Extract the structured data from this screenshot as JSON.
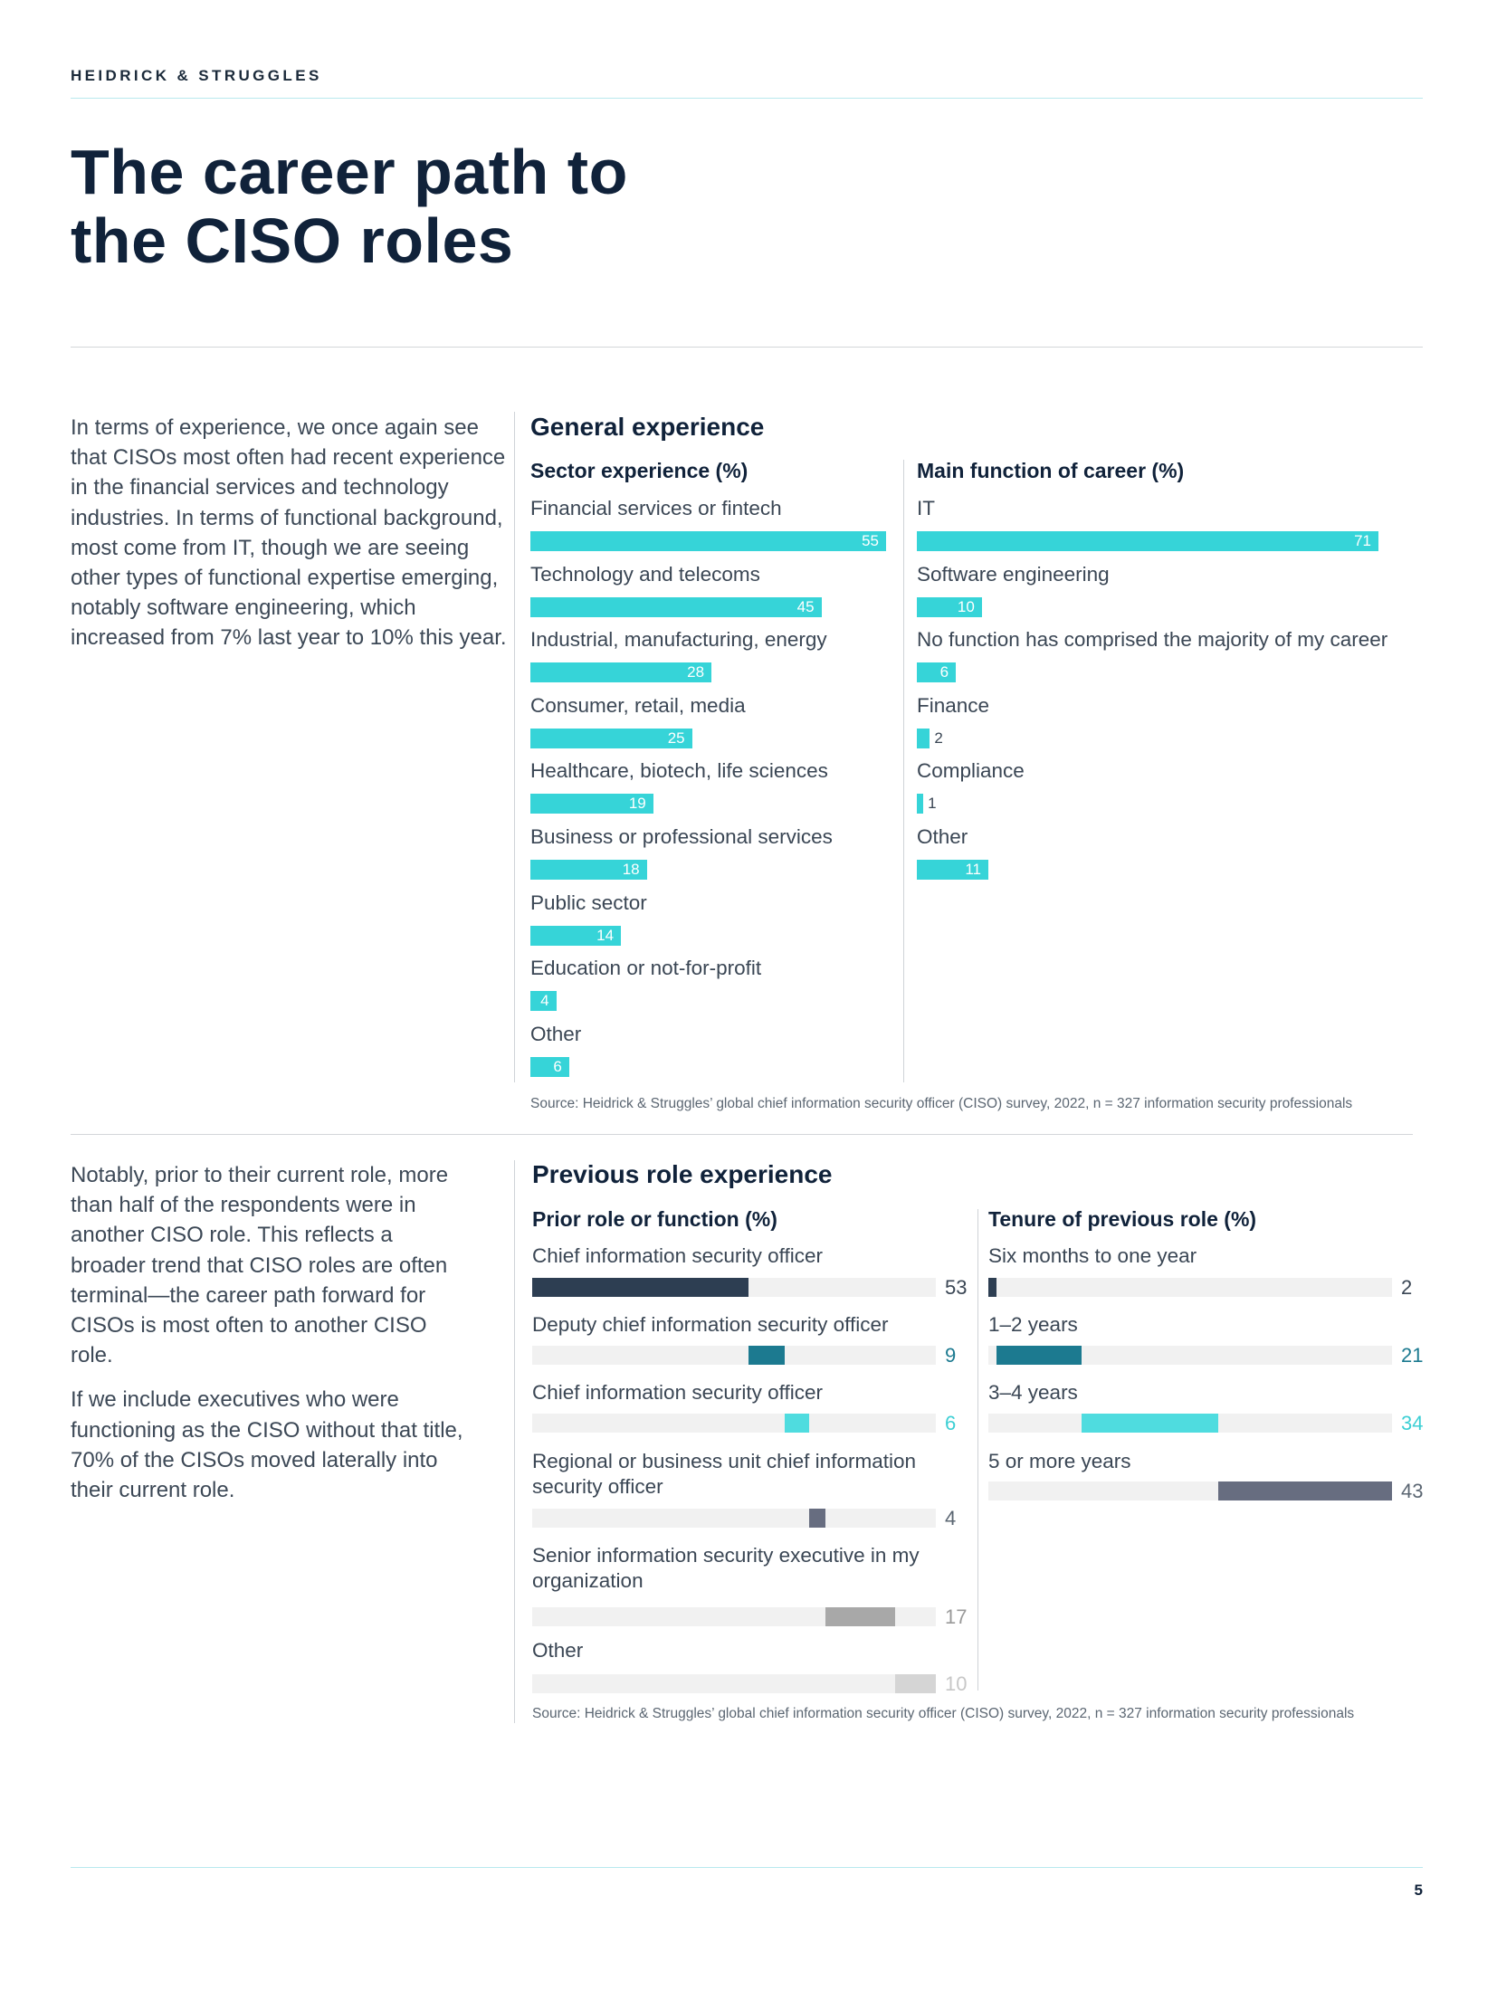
{
  "header": {
    "brand": "HEIDRICK & STRUGGLES"
  },
  "title": {
    "line1": "The career path to",
    "line2": "the CISO roles"
  },
  "intro": {
    "p1": "In terms of experience, we once again see that CISOs most often had recent experience in the financial services and technology industries. In terms of functional background, most come from IT, though we are seeing other types of functional expertise emerging, notably software engineering, which increased from 7% last year to 10% this year."
  },
  "second": {
    "p1": "Notably, prior to their current role, more than half of the respondents were in another CISO role. This reflects a broader trend that CISO roles are often terminal—the career path forward for CISOs is most often to another CISO role.",
    "p2": "If we include executives who were functioning as the CISO without that title, 70% of the CISOs moved laterally into their current role."
  },
  "footer": {
    "page_number": "5"
  },
  "colors": {
    "cyan": "#36d4d8",
    "navy": "#2d3e52",
    "teal": "#1c7a90",
    "light_cyan": "#4fdcdf",
    "slate": "#676d80",
    "grey": "#a8a8a8",
    "light_grey": "#d5d5d5",
    "track": "#f1f1f1"
  },
  "chart_data": [
    {
      "type": "bar",
      "orientation": "horizontal",
      "panel": "General experience",
      "title": "Sector experience (%)",
      "categories": [
        "Financial services or fintech",
        "Technology and telecoms",
        "Industrial, manufacturing, energy",
        "Consumer, retail, media",
        "Healthcare, biotech, life sciences",
        "Business or professional services",
        "Public sector",
        "Education or not-for-profit",
        "Other"
      ],
      "values": [
        55,
        45,
        28,
        25,
        19,
        18,
        14,
        4,
        6
      ],
      "xlim": [
        0,
        55
      ],
      "source": "Source: Heidrick & Struggles’ global chief information security officer (CISO) survey, 2022, n = 327 information security professionals"
    },
    {
      "type": "bar",
      "orientation": "horizontal",
      "panel": "General experience",
      "title": "Main function of career (%)",
      "categories": [
        "IT",
        "Software engineering",
        "No function has comprised the majority of my career",
        "Finance",
        "Compliance",
        "Other"
      ],
      "values": [
        71,
        10,
        6,
        2,
        1,
        11
      ],
      "xlim": [
        0,
        71
      ]
    },
    {
      "type": "bar",
      "orientation": "horizontal",
      "style": "stacked-offset",
      "panel": "Previous role experience",
      "title": "Prior role or function (%)",
      "categories": [
        "Chief information security officer",
        "Deputy chief information security officer",
        "Chief information security officer",
        "Regional or business unit chief information security officer",
        "Senior information security executive in my organization",
        "Other"
      ],
      "values": [
        53,
        9,
        6,
        4,
        17,
        10
      ],
      "xlim": [
        0,
        99
      ],
      "colors": [
        "#2d3e52",
        "#1c7a90",
        "#4fdcdf",
        "#676d80",
        "#a8a8a8",
        "#d5d5d5"
      ],
      "source": "Source: Heidrick & Struggles’ global chief information security officer (CISO) survey, 2022, n = 327 information security professionals"
    },
    {
      "type": "bar",
      "orientation": "horizontal",
      "style": "stacked-offset",
      "panel": "Previous role experience",
      "title": "Tenure of previous role (%)",
      "categories": [
        "Six months to one year",
        "1–2 years",
        "3–4 years",
        "5 or more years"
      ],
      "values": [
        2,
        21,
        34,
        43
      ],
      "xlim": [
        0,
        100
      ],
      "colors": [
        "#2d3e52",
        "#1c7a90",
        "#4fdcdf",
        "#676d80"
      ]
    }
  ]
}
